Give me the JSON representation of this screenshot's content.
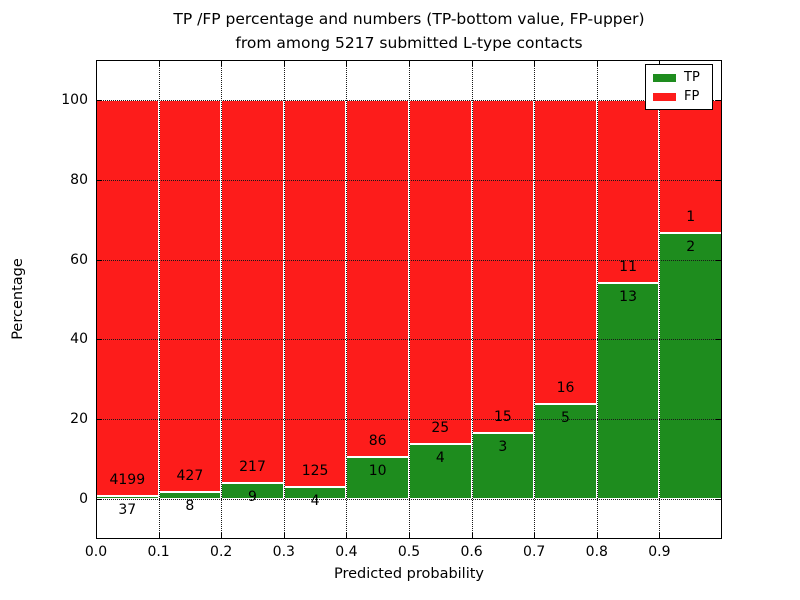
{
  "figure": {
    "title_line1": "TP /FP percentage and numbers (TP-bottom value, FP-upper)",
    "title_line2": "from among 5217 submitted L-type contacts",
    "xlabel": "Predicted probability",
    "ylabel": "Percentage"
  },
  "legend": {
    "items": [
      {
        "label": "TP",
        "color": "#1e8c1e"
      },
      {
        "label": "FP",
        "color": "#fd1c1b"
      }
    ]
  },
  "chart_data": {
    "type": "bar",
    "stacked": true,
    "orientation": "vertical",
    "title": "TP /FP percentage and numbers (TP-bottom value, FP-upper) from among 5217 submitted L-type contacts",
    "xlabel": "Predicted probability",
    "ylabel": "Percentage",
    "total_submitted_contacts": 5217,
    "bin_width": 0.1,
    "bin_starts": [
      0.0,
      0.1,
      0.2,
      0.3,
      0.4,
      0.5,
      0.6,
      0.7,
      0.8,
      0.9
    ],
    "xlim": [
      0.0,
      1.0
    ],
    "ylim": [
      -10,
      110
    ],
    "xticks": [
      "0.0",
      "0.1",
      "0.2",
      "0.3",
      "0.4",
      "0.5",
      "0.6",
      "0.7",
      "0.8",
      "0.9"
    ],
    "yticks": [
      0,
      20,
      40,
      60,
      80,
      100
    ],
    "grid": "dotted",
    "legend_position": "upper-right",
    "bar_edge_color": "#ffffff",
    "series": [
      {
        "name": "TP",
        "color": "#1e8c1e",
        "counts": [
          37,
          8,
          9,
          4,
          10,
          4,
          3,
          5,
          13,
          2
        ],
        "percent": [
          0.87,
          1.84,
          3.98,
          3.1,
          10.42,
          13.79,
          16.67,
          23.81,
          54.17,
          66.67
        ]
      },
      {
        "name": "FP",
        "color": "#fd1c1b",
        "counts": [
          4199,
          427,
          217,
          125,
          86,
          25,
          15,
          16,
          11,
          1
        ],
        "percent": [
          99.13,
          98.16,
          96.02,
          96.9,
          89.58,
          86.21,
          83.33,
          76.19,
          45.83,
          33.33
        ]
      }
    ]
  }
}
